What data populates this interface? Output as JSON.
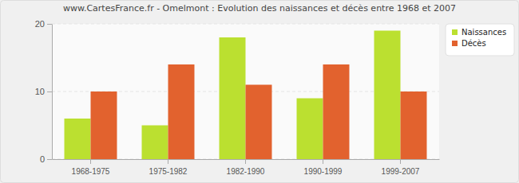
{
  "chart_data": {
    "type": "bar",
    "title": "www.CartesFrance.fr - Omelmont : Evolution des naissances et décès entre 1968 et 2007",
    "categories": [
      "1968-1975",
      "1975-1982",
      "1982-1990",
      "1990-1999",
      "1999-2007"
    ],
    "series": [
      {
        "name": "Naissances",
        "color": "#bbe030",
        "values": [
          6,
          5,
          18,
          9,
          19
        ]
      },
      {
        "name": "Décès",
        "color": "#e2622e",
        "values": [
          10,
          14,
          11,
          14,
          10
        ]
      }
    ],
    "ylim": [
      0,
      20
    ],
    "yticks": [
      0,
      10,
      20
    ],
    "grid": true,
    "legend": "top-right"
  }
}
